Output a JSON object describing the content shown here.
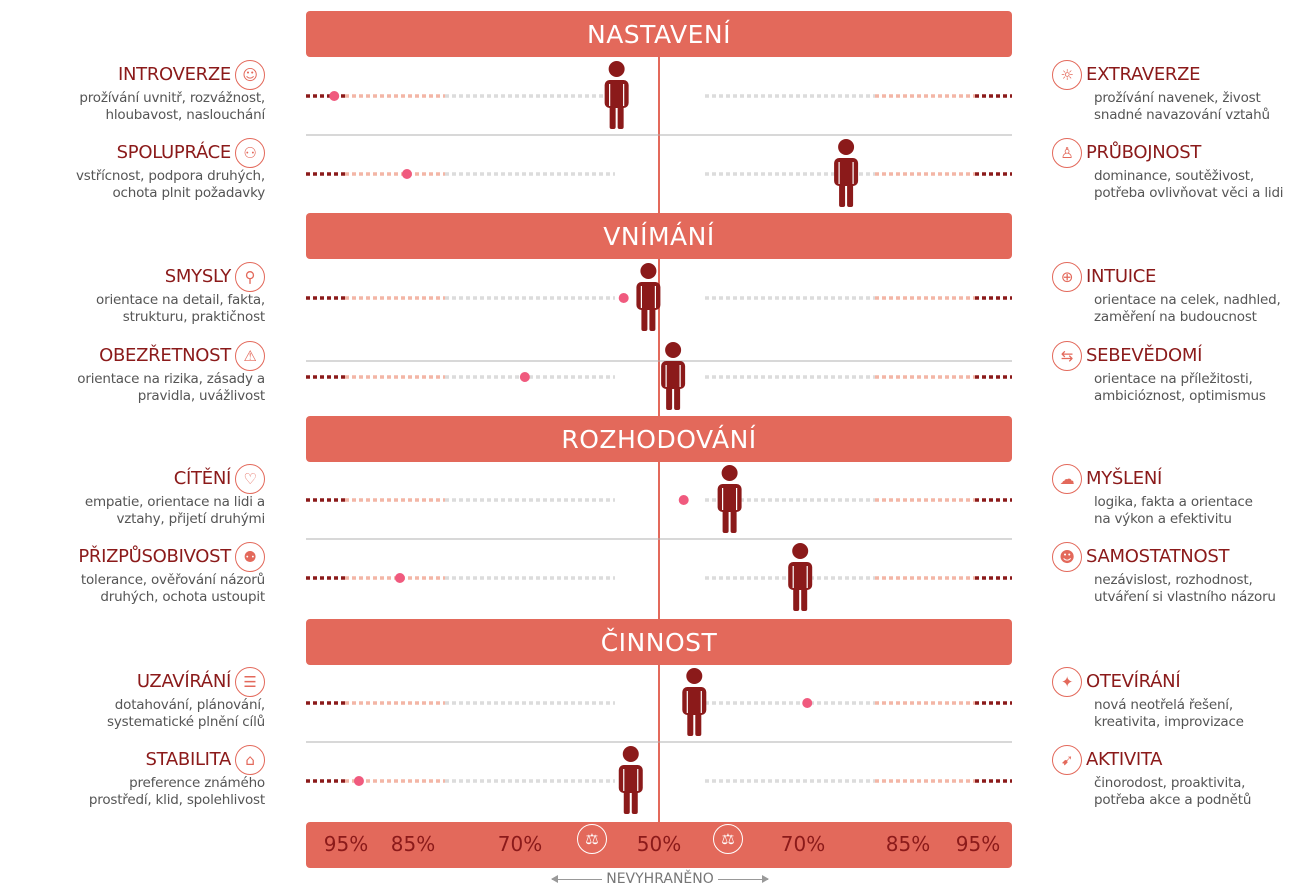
{
  "sections": [
    {
      "title": "NASTAVENÍ"
    },
    {
      "title": "VNÍMÁNÍ"
    },
    {
      "title": "ROZHODOVÁNÍ"
    },
    {
      "title": "ČINNOST"
    }
  ],
  "rows": [
    {
      "left": {
        "name": "INTROVERZE",
        "desc": [
          "prožívání uvnitř, rozvážnost,",
          "hloubavost, naslouchání"
        ],
        "icon": "person-icon"
      },
      "right": {
        "name": "EXTRAVERZE",
        "desc": [
          "prožívání navenek, živost",
          "snadné navazování vztahů"
        ],
        "icon": "person-radiant-icon"
      },
      "person_pos": 0.44,
      "dot_pos": 0.04
    },
    {
      "left": {
        "name": "SPOLUPRÁCE",
        "desc": [
          "vstřícnost, podpora druhých,",
          "ochota plnit požadavky"
        ],
        "icon": "two-people-icon"
      },
      "right": {
        "name": "PRŮBOJNOST",
        "desc": [
          "dominance, soutěživost,",
          "potřeba ovlivňovat věci a lidi"
        ],
        "icon": "strong-person-icon"
      },
      "person_pos": 0.765,
      "dot_pos": 0.143
    },
    {
      "left": {
        "name": "SMYSLY",
        "desc": [
          "orientace na detail, fakta,",
          "strukturu, praktičnost"
        ],
        "icon": "magnifier-icon"
      },
      "right": {
        "name": "INTUICE",
        "desc": [
          "orientace na celek, nadhled,",
          "zaměření na budoucnost"
        ],
        "icon": "globe-icon"
      },
      "person_pos": 0.485,
      "dot_pos": 0.45
    },
    {
      "left": {
        "name": "OBEZŘETNOST",
        "desc": [
          "orientace na rizika, zásady a",
          "pravidla, uvážlivost"
        ],
        "icon": "warning-icon"
      },
      "right": {
        "name": "SEBEVĚDOMÍ",
        "desc": [
          "orientace na příležitosti,",
          "ambicióznost, optimismus"
        ],
        "icon": "signpost-icon"
      },
      "person_pos": 0.52,
      "dot_pos": 0.31
    },
    {
      "left": {
        "name": "CÍTĚNÍ",
        "desc": [
          "empatie, orientace na lidi a",
          "vztahy, přijetí druhými"
        ],
        "icon": "heart-head-icon"
      },
      "right": {
        "name": "MYŠLENÍ",
        "desc": [
          "logika, fakta a orientace",
          "na výkon a efektivitu"
        ],
        "icon": "brain-head-icon"
      },
      "person_pos": 0.6,
      "dot_pos": 0.535
    },
    {
      "left": {
        "name": "PŘIZPŮSOBIVOST",
        "desc": [
          "tolerance, ověřování názorů",
          "druhých, ochota ustoupit"
        ],
        "icon": "people-head-icon"
      },
      "right": {
        "name": "SAMOSTATNOST",
        "desc": [
          "nezávislost, rozhodnost,",
          "utváření si vlastního názoru"
        ],
        "icon": "person-head-icon"
      },
      "person_pos": 0.7,
      "dot_pos": 0.133
    },
    {
      "left": {
        "name": "UZAVÍRÁNÍ",
        "desc": [
          "dotahování, plánování,",
          "systematické plnění cílů"
        ],
        "icon": "checklist-icon"
      },
      "right": {
        "name": "OTEVÍRÁNÍ",
        "desc": [
          "nová neotřelá řešení,",
          "kreativita, improvizace"
        ],
        "icon": "lightbulb-icon"
      },
      "person_pos": 0.55,
      "dot_pos": 0.71
    },
    {
      "left": {
        "name": "STABILITA",
        "desc": [
          "preference známého",
          "prostředí, klid, spolehlivost"
        ],
        "icon": "armchair-icon"
      },
      "right": {
        "name": "AKTIVITA",
        "desc": [
          "činorodost, proaktivita,",
          "potřeba akce a podnětů"
        ],
        "icon": "runner-icon"
      },
      "person_pos": 0.46,
      "dot_pos": 0.075
    }
  ],
  "scale": {
    "labels": [
      "95%",
      "85%",
      "70%",
      "50%",
      "70%",
      "85%",
      "95%"
    ],
    "neutral_label": "NEVYHRANĚNO",
    "balance_icon": "scales-icon"
  },
  "colors": {
    "bar": "#e3695b",
    "dark": "#8b1a1a",
    "dot": "#f05a7e",
    "light": "#f3b6a6",
    "grey": "#dcdcdc"
  }
}
